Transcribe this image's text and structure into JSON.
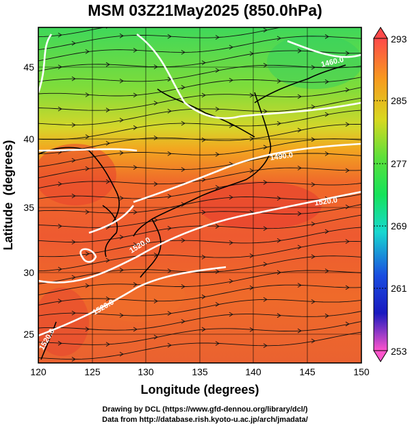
{
  "title": "MSM 03Z21May2025 (850.0hPa)",
  "x_axis": {
    "label": "Longitude (degrees)",
    "ticks": [
      "120",
      "125",
      "130",
      "135",
      "140",
      "145",
      "150"
    ]
  },
  "y_axis": {
    "label": "Latitude  (degrees)",
    "ticks": [
      "25",
      "30",
      "35",
      "40",
      "45"
    ]
  },
  "colorbar": {
    "labels": [
      "293",
      "285",
      "277",
      "269",
      "261",
      "253"
    ],
    "colors": [
      "#ff4a4a",
      "#f79a1e",
      "#9ae03a",
      "#15e35a",
      "#18d8d0",
      "#1a4de0",
      "#1a1ac0",
      "#c020d0",
      "#ff55cc"
    ]
  },
  "contour_labels": [
    "1460.0",
    "1490.0",
    "1520.0",
    "1520.0",
    "1520.0",
    "1520.0"
  ],
  "credits": [
    "Drawing by DCL (https://www.gfd-dennou.org/library/dcl/)",
    "Data from http://database.rish.kyoto-u.ac.jp/arch/jmadata/"
  ]
}
